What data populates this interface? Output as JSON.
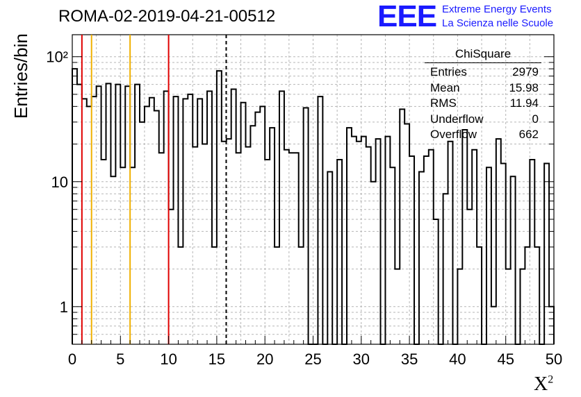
{
  "title": "ROMA-02-2019-04-21-00512",
  "logo": {
    "letters": "EEE",
    "line1": "Extreme Energy Events",
    "line2": "La Scienza nelle Scuole"
  },
  "stats": {
    "title": "ChiSquare",
    "rows": [
      {
        "label": "Entries",
        "value": "2979"
      },
      {
        "label": "Mean",
        "value": "15.98"
      },
      {
        "label": "RMS",
        "value": "11.94"
      },
      {
        "label": "Underflow",
        "value": "0"
      },
      {
        "label": "Overflow",
        "value": "662"
      }
    ]
  },
  "chart_data": {
    "type": "histogram",
    "xlabel": "X²",
    "ylabel": "Entries/bin",
    "xlim": [
      0,
      50
    ],
    "ylim": [
      0.5,
      150
    ],
    "yscale": "log",
    "grid": true,
    "bin_width": 0.5,
    "xticks": [
      "0",
      "5",
      "10",
      "15",
      "20",
      "25",
      "30",
      "35",
      "40",
      "45",
      "50"
    ],
    "yticks": [
      {
        "value": 1,
        "label": "1"
      },
      {
        "value": 10,
        "label": "10"
      },
      {
        "value": 100,
        "label": "10²"
      }
    ],
    "values": [
      80,
      60,
      46,
      40,
      48,
      58,
      15,
      61,
      11,
      60,
      13,
      58,
      13,
      60,
      30,
      40,
      47,
      37,
      17,
      53,
      6,
      48,
      3,
      46,
      50,
      19,
      46,
      20,
      53,
      3,
      77,
      21,
      22,
      55,
      17,
      43,
      19,
      28,
      36,
      40,
      15,
      27,
      3,
      53,
      18,
      17,
      17,
      3,
      39,
      0,
      0,
      48,
      0,
      12,
      0,
      15,
      0,
      27,
      23,
      21,
      23,
      19,
      10,
      22,
      0,
      23,
      13,
      2,
      38,
      29,
      16,
      0,
      12,
      16,
      18,
      5,
      0,
      8,
      21,
      0,
      2,
      26,
      6,
      18,
      3,
      0,
      13,
      1,
      22,
      14,
      2,
      11,
      0,
      2,
      3,
      15,
      3,
      0,
      14,
      1
    ],
    "lines": [
      {
        "x": 1,
        "color": "#e00000",
        "style": "solid"
      },
      {
        "x": 2,
        "color": "#f0b000",
        "style": "solid"
      },
      {
        "x": 6,
        "color": "#f0b000",
        "style": "solid"
      },
      {
        "x": 10,
        "color": "#e00000",
        "style": "solid"
      },
      {
        "x": 15.98,
        "color": "#000000",
        "style": "dashed"
      }
    ]
  }
}
